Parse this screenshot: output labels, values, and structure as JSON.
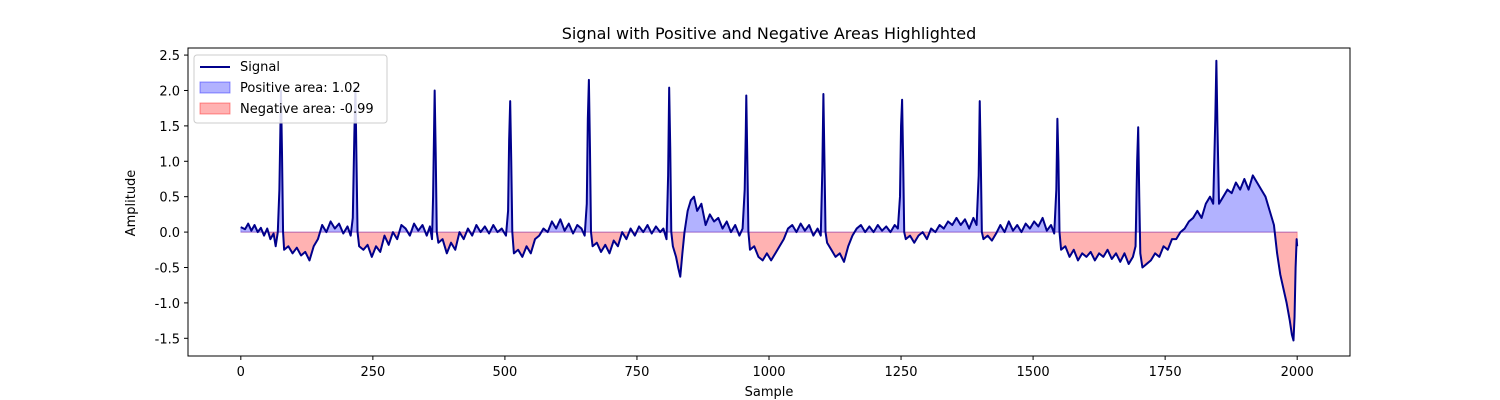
{
  "chart_data": {
    "type": "area",
    "title": "Signal with Positive and Negative Areas Highlighted",
    "xlabel": "Sample",
    "ylabel": "Amplitude",
    "xlim": [
      -100,
      2100
    ],
    "ylim": [
      -1.75,
      2.6
    ],
    "xticks": [
      0,
      250,
      500,
      750,
      1000,
      1250,
      1500,
      1750,
      2000
    ],
    "yticks": [
      -1.5,
      -1.0,
      -0.5,
      0.0,
      0.5,
      1.0,
      1.5,
      2.0,
      2.5
    ],
    "grid": false,
    "legend_placement": "upper left",
    "legend": [
      {
        "key": "signal",
        "label": "Signal"
      },
      {
        "key": "positive",
        "label": "Positive area: 1.02"
      },
      {
        "key": "negative",
        "label": "Negative area: -0.99"
      }
    ],
    "colors": {
      "signal": "#00008b",
      "positive_fill": "#0000ff",
      "negative_fill": "#ff0000"
    },
    "series": [
      {
        "name": "Signal",
        "points": [
          [
            0,
            0.07
          ],
          [
            8,
            0.04
          ],
          [
            14,
            0.12
          ],
          [
            20,
            0.02
          ],
          [
            26,
            0.1
          ],
          [
            32,
            0.0
          ],
          [
            38,
            0.06
          ],
          [
            44,
            -0.05
          ],
          [
            50,
            0.05
          ],
          [
            56,
            -0.1
          ],
          [
            62,
            -0.02
          ],
          [
            66,
            -0.2
          ],
          [
            70,
            0.0
          ],
          [
            73,
            0.6
          ],
          [
            75,
            1.5
          ],
          [
            76,
            2.0
          ],
          [
            78,
            1.1
          ],
          [
            80,
            0.0
          ],
          [
            82,
            -0.25
          ],
          [
            90,
            -0.2
          ],
          [
            98,
            -0.3
          ],
          [
            106,
            -0.22
          ],
          [
            114,
            -0.33
          ],
          [
            122,
            -0.28
          ],
          [
            130,
            -0.4
          ],
          [
            138,
            -0.2
          ],
          [
            146,
            -0.1
          ],
          [
            154,
            0.1
          ],
          [
            162,
            0.0
          ],
          [
            170,
            0.15
          ],
          [
            178,
            0.05
          ],
          [
            186,
            0.12
          ],
          [
            194,
            -0.02
          ],
          [
            202,
            0.08
          ],
          [
            208,
            -0.05
          ],
          [
            212,
            0.2
          ],
          [
            215,
            1.4
          ],
          [
            217,
            2.03
          ],
          [
            219,
            1.0
          ],
          [
            221,
            0.0
          ],
          [
            224,
            -0.2
          ],
          [
            232,
            -0.25
          ],
          [
            240,
            -0.18
          ],
          [
            248,
            -0.35
          ],
          [
            256,
            -0.2
          ],
          [
            264,
            -0.28
          ],
          [
            272,
            -0.05
          ],
          [
            280,
            -0.18
          ],
          [
            288,
            0.0
          ],
          [
            296,
            -0.1
          ],
          [
            304,
            0.1
          ],
          [
            312,
            0.05
          ],
          [
            320,
            -0.05
          ],
          [
            328,
            0.12
          ],
          [
            336,
            0.02
          ],
          [
            344,
            0.1
          ],
          [
            352,
            -0.05
          ],
          [
            358,
            0.08
          ],
          [
            362,
            -0.1
          ],
          [
            364,
            0.5
          ],
          [
            366,
            1.5
          ],
          [
            367,
            2.0
          ],
          [
            369,
            1.1
          ],
          [
            371,
            0.0
          ],
          [
            374,
            -0.15
          ],
          [
            382,
            -0.1
          ],
          [
            390,
            -0.3
          ],
          [
            398,
            -0.15
          ],
          [
            406,
            -0.25
          ],
          [
            414,
            0.0
          ],
          [
            422,
            -0.1
          ],
          [
            430,
            0.05
          ],
          [
            438,
            -0.05
          ],
          [
            446,
            0.1
          ],
          [
            454,
            0.0
          ],
          [
            462,
            0.08
          ],
          [
            470,
            -0.02
          ],
          [
            478,
            0.1
          ],
          [
            486,
            0.0
          ],
          [
            494,
            0.05
          ],
          [
            502,
            -0.05
          ],
          [
            506,
            0.3
          ],
          [
            508,
            1.3
          ],
          [
            510,
            1.85
          ],
          [
            512,
            1.0
          ],
          [
            514,
            0.0
          ],
          [
            517,
            -0.3
          ],
          [
            525,
            -0.25
          ],
          [
            533,
            -0.35
          ],
          [
            541,
            -0.2
          ],
          [
            549,
            -0.3
          ],
          [
            557,
            -0.1
          ],
          [
            565,
            -0.05
          ],
          [
            573,
            0.05
          ],
          [
            581,
            0.0
          ],
          [
            589,
            0.15
          ],
          [
            597,
            0.05
          ],
          [
            605,
            0.18
          ],
          [
            613,
            0.02
          ],
          [
            621,
            0.12
          ],
          [
            629,
            -0.02
          ],
          [
            637,
            0.1
          ],
          [
            645,
            0.05
          ],
          [
            651,
            -0.05
          ],
          [
            655,
            0.4
          ],
          [
            657,
            1.6
          ],
          [
            659,
            2.15
          ],
          [
            661,
            1.2
          ],
          [
            663,
            0.0
          ],
          [
            666,
            -0.2
          ],
          [
            674,
            -0.15
          ],
          [
            682,
            -0.28
          ],
          [
            690,
            -0.18
          ],
          [
            698,
            -0.3
          ],
          [
            706,
            -0.12
          ],
          [
            714,
            -0.2
          ],
          [
            722,
            0.0
          ],
          [
            730,
            -0.1
          ],
          [
            738,
            0.05
          ],
          [
            746,
            -0.05
          ],
          [
            754,
            0.08
          ],
          [
            762,
            0.0
          ],
          [
            770,
            0.1
          ],
          [
            778,
            -0.02
          ],
          [
            786,
            0.08
          ],
          [
            794,
            0.0
          ],
          [
            800,
            0.05
          ],
          [
            806,
            -0.1
          ],
          [
            809,
            0.8
          ],
          [
            811,
            2.04
          ],
          [
            813,
            1.2
          ],
          [
            815,
            0.0
          ],
          [
            818,
            -0.2
          ],
          [
            824,
            -0.35
          ],
          [
            828,
            -0.5
          ],
          [
            832,
            -0.63
          ],
          [
            836,
            -0.3
          ],
          [
            840,
            0.0
          ],
          [
            846,
            0.3
          ],
          [
            852,
            0.45
          ],
          [
            858,
            0.5
          ],
          [
            864,
            0.3
          ],
          [
            872,
            0.4
          ],
          [
            880,
            0.1
          ],
          [
            888,
            0.25
          ],
          [
            896,
            0.15
          ],
          [
            904,
            0.2
          ],
          [
            912,
            0.05
          ],
          [
            920,
            0.15
          ],
          [
            928,
            0.0
          ],
          [
            936,
            0.1
          ],
          [
            944,
            -0.05
          ],
          [
            950,
            0.05
          ],
          [
            954,
            0.6
          ],
          [
            956,
            1.4
          ],
          [
            957,
            1.93
          ],
          [
            959,
            1.0
          ],
          [
            961,
            0.0
          ],
          [
            964,
            -0.25
          ],
          [
            972,
            -0.2
          ],
          [
            980,
            -0.35
          ],
          [
            988,
            -0.4
          ],
          [
            996,
            -0.3
          ],
          [
            1004,
            -0.4
          ],
          [
            1012,
            -0.3
          ],
          [
            1020,
            -0.2
          ],
          [
            1028,
            -0.1
          ],
          [
            1036,
            0.05
          ],
          [
            1044,
            0.1
          ],
          [
            1052,
            0.0
          ],
          [
            1060,
            0.12
          ],
          [
            1068,
            0.02
          ],
          [
            1076,
            0.1
          ],
          [
            1084,
            -0.05
          ],
          [
            1092,
            0.05
          ],
          [
            1098,
            -0.05
          ],
          [
            1101,
            0.9
          ],
          [
            1103,
            1.95
          ],
          [
            1105,
            1.0
          ],
          [
            1107,
            0.0
          ],
          [
            1110,
            -0.15
          ],
          [
            1118,
            -0.25
          ],
          [
            1126,
            -0.35
          ],
          [
            1134,
            -0.3
          ],
          [
            1142,
            -0.42
          ],
          [
            1150,
            -0.2
          ],
          [
            1158,
            -0.05
          ],
          [
            1166,
            0.05
          ],
          [
            1174,
            0.1
          ],
          [
            1182,
            0.0
          ],
          [
            1190,
            0.08
          ],
          [
            1198,
            0.0
          ],
          [
            1206,
            0.1
          ],
          [
            1214,
            0.02
          ],
          [
            1222,
            0.08
          ],
          [
            1230,
            0.0
          ],
          [
            1238,
            0.1
          ],
          [
            1244,
            0.05
          ],
          [
            1248,
            0.5
          ],
          [
            1250,
            1.5
          ],
          [
            1252,
            1.87
          ],
          [
            1254,
            1.0
          ],
          [
            1256,
            0.0
          ],
          [
            1259,
            -0.1
          ],
          [
            1267,
            -0.05
          ],
          [
            1275,
            -0.15
          ],
          [
            1283,
            -0.05
          ],
          [
            1291,
            0.0
          ],
          [
            1299,
            -0.1
          ],
          [
            1307,
            0.05
          ],
          [
            1315,
            0.0
          ],
          [
            1323,
            0.1
          ],
          [
            1331,
            0.05
          ],
          [
            1339,
            0.15
          ],
          [
            1347,
            0.1
          ],
          [
            1355,
            0.2
          ],
          [
            1363,
            0.1
          ],
          [
            1371,
            0.18
          ],
          [
            1379,
            0.05
          ],
          [
            1387,
            0.2
          ],
          [
            1393,
            0.1
          ],
          [
            1397,
            0.8
          ],
          [
            1399,
            1.85
          ],
          [
            1401,
            1.0
          ],
          [
            1403,
            0.0
          ],
          [
            1406,
            -0.1
          ],
          [
            1414,
            -0.05
          ],
          [
            1422,
            -0.12
          ],
          [
            1430,
            -0.02
          ],
          [
            1438,
            0.1
          ],
          [
            1446,
            0.0
          ],
          [
            1454,
            0.15
          ],
          [
            1462,
            0.02
          ],
          [
            1470,
            0.1
          ],
          [
            1478,
            0.0
          ],
          [
            1486,
            0.12
          ],
          [
            1494,
            0.05
          ],
          [
            1502,
            0.15
          ],
          [
            1510,
            0.08
          ],
          [
            1518,
            0.2
          ],
          [
            1526,
            0.02
          ],
          [
            1534,
            0.1
          ],
          [
            1540,
            -0.02
          ],
          [
            1544,
            0.6
          ],
          [
            1546,
            1.6
          ],
          [
            1548,
            1.0
          ],
          [
            1550,
            0.0
          ],
          [
            1553,
            -0.25
          ],
          [
            1561,
            -0.2
          ],
          [
            1569,
            -0.35
          ],
          [
            1577,
            -0.25
          ],
          [
            1585,
            -0.4
          ],
          [
            1593,
            -0.3
          ],
          [
            1601,
            -0.35
          ],
          [
            1609,
            -0.28
          ],
          [
            1617,
            -0.4
          ],
          [
            1625,
            -0.3
          ],
          [
            1633,
            -0.35
          ],
          [
            1641,
            -0.25
          ],
          [
            1649,
            -0.38
          ],
          [
            1657,
            -0.3
          ],
          [
            1665,
            -0.42
          ],
          [
            1673,
            -0.3
          ],
          [
            1681,
            -0.45
          ],
          [
            1689,
            -0.35
          ],
          [
            1694,
            -0.2
          ],
          [
            1697,
            1.0
          ],
          [
            1699,
            1.48
          ],
          [
            1701,
            0.5
          ],
          [
            1703,
            -0.3
          ],
          [
            1707,
            -0.5
          ],
          [
            1715,
            -0.45
          ],
          [
            1723,
            -0.4
          ],
          [
            1731,
            -0.3
          ],
          [
            1739,
            -0.35
          ],
          [
            1747,
            -0.2
          ],
          [
            1755,
            -0.25
          ],
          [
            1763,
            -0.1
          ],
          [
            1771,
            -0.1
          ],
          [
            1779,
            0.0
          ],
          [
            1787,
            0.05
          ],
          [
            1795,
            0.15
          ],
          [
            1803,
            0.2
          ],
          [
            1811,
            0.3
          ],
          [
            1819,
            0.2
          ],
          [
            1827,
            0.4
          ],
          [
            1835,
            0.5
          ],
          [
            1841,
            0.4
          ],
          [
            1845,
            1.6
          ],
          [
            1847,
            2.42
          ],
          [
            1849,
            1.5
          ],
          [
            1852,
            0.4
          ],
          [
            1860,
            0.5
          ],
          [
            1868,
            0.6
          ],
          [
            1876,
            0.55
          ],
          [
            1884,
            0.7
          ],
          [
            1892,
            0.6
          ],
          [
            1900,
            0.75
          ],
          [
            1908,
            0.6
          ],
          [
            1916,
            0.8
          ],
          [
            1924,
            0.7
          ],
          [
            1932,
            0.6
          ],
          [
            1940,
            0.5
          ],
          [
            1948,
            0.3
          ],
          [
            1956,
            0.1
          ],
          [
            1962,
            -0.3
          ],
          [
            1968,
            -0.6
          ],
          [
            1974,
            -0.8
          ],
          [
            1980,
            -1.0
          ],
          [
            1986,
            -1.25
          ],
          [
            1990,
            -1.45
          ],
          [
            1993,
            -1.53
          ],
          [
            1995,
            -1.2
          ],
          [
            1997,
            -0.5
          ],
          [
            1999,
            -0.1
          ],
          [
            2000,
            -0.2
          ]
        ]
      }
    ]
  }
}
